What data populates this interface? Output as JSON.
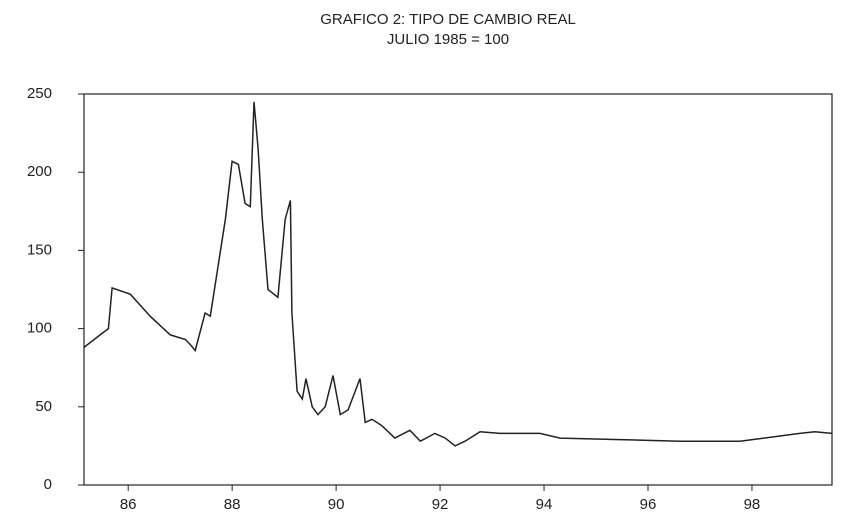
{
  "chart_data": {
    "type": "line",
    "title": "GRAFICO 2: TIPO DE CAMBIO REAL",
    "subtitle": "JULIO 1985 = 100",
    "x": [
      85.15,
      85.46,
      85.62,
      85.69,
      86.04,
      86.42,
      86.81,
      87.1,
      87.19,
      87.29,
      87.48,
      87.58,
      87.73,
      87.87,
      88.0,
      88.12,
      88.25,
      88.35,
      88.42,
      88.5,
      88.58,
      88.69,
      88.88,
      89.02,
      89.12,
      89.15,
      89.25,
      89.35,
      89.42,
      89.54,
      89.65,
      89.79,
      89.94,
      90.08,
      90.23,
      90.46,
      90.56,
      90.69,
      90.88,
      91.13,
      91.42,
      91.62,
      91.9,
      92.1,
      92.29,
      92.48,
      92.77,
      93.15,
      93.92,
      94.31,
      95.46,
      96.62,
      97.77,
      98.92,
      99.21,
      99.54
    ],
    "series": [
      {
        "color": "#222222",
        "values": [
          88,
          96,
          100,
          126,
          122,
          108,
          96,
          93,
          90,
          86,
          110,
          108,
          140,
          170,
          207,
          205,
          180,
          178,
          245,
          215,
          170,
          125,
          120,
          170,
          182,
          110,
          60,
          55,
          68,
          50,
          45,
          50,
          70,
          45,
          48,
          68,
          40,
          42,
          38,
          30,
          35,
          28,
          33,
          30,
          25,
          28,
          34,
          33,
          33,
          30,
          29,
          28,
          28,
          33,
          34,
          33
        ]
      }
    ],
    "xlim": [
      85.15,
      99.54
    ],
    "xticks": [
      86,
      88,
      90,
      92,
      94,
      96,
      98
    ],
    "ylim": [
      0,
      250
    ],
    "yticks": [
      0,
      50,
      100,
      150,
      200,
      250
    ]
  }
}
